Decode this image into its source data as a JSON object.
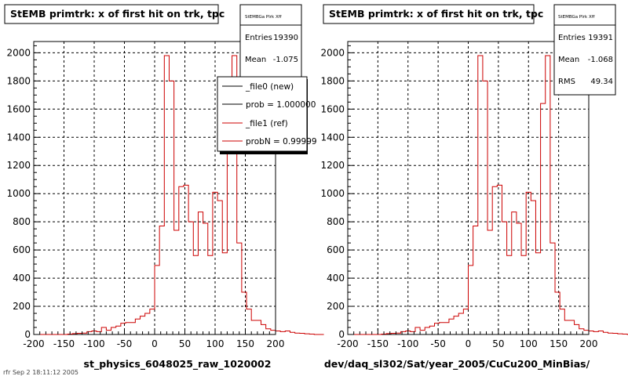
{
  "chart_data": [
    {
      "type": "histogram",
      "title": "StEMB primtrk: x of first hit on trk, tpc",
      "xlabel": "st_physics_6048025_raw_1020002",
      "xlim": [
        -200,
        200
      ],
      "ylim": [
        0,
        2080
      ],
      "xticks": [
        -200,
        -150,
        -100,
        -50,
        0,
        50,
        100,
        150,
        200
      ],
      "yticks": [
        0,
        200,
        400,
        600,
        800,
        1000,
        1200,
        1400,
        1600,
        1800,
        2000
      ],
      "grid": true,
      "bin_width": 8,
      "bin_edges_start": -200,
      "values": [
        0,
        0,
        0,
        0,
        0,
        0,
        0,
        3,
        6,
        8,
        10,
        20,
        25,
        20,
        50,
        30,
        50,
        60,
        80,
        85,
        85,
        110,
        130,
        150,
        180,
        490,
        770,
        1980,
        1800,
        740,
        1050,
        1060,
        800,
        560,
        870,
        790,
        560,
        1010,
        950,
        580,
        1640,
        1980,
        650,
        300,
        180,
        100,
        100,
        70,
        40,
        30,
        25,
        20,
        25,
        15,
        10,
        8,
        5,
        3,
        0,
        0
      ],
      "line_color": "#cc0000",
      "stats": {
        "header": "StEMBGa Plrk Xff",
        "entries_label": "Entries",
        "entries_value": "19390",
        "mean_label": "Mean",
        "mean_value": "-1.075"
      },
      "legend": [
        {
          "label": "_file0 (new)",
          "color": "#000000"
        },
        {
          "label": "prob = 1.000000",
          "color": "#000000"
        },
        {
          "label": "_file1 (ref)",
          "color": "#cc0000"
        },
        {
          "label": "probN = 0.99999",
          "color": "#cc0000"
        }
      ]
    },
    {
      "type": "histogram",
      "title": "StEMB primtrk: x of first hit on trk, tpc",
      "xlabel": "dev/daq_sl302/Sat/year_2005/CuCu200_MinBias/",
      "xlim": [
        -200,
        200
      ],
      "ylim": [
        0,
        2080
      ],
      "xticks": [
        -200,
        -150,
        -100,
        -50,
        0,
        50,
        100,
        150,
        200
      ],
      "yticks": [
        0,
        200,
        400,
        600,
        800,
        1000,
        1200,
        1400,
        1600,
        1800,
        2000
      ],
      "grid": true,
      "bin_width": 8,
      "bin_edges_start": -200,
      "values": [
        0,
        0,
        0,
        0,
        0,
        0,
        0,
        3,
        6,
        8,
        10,
        20,
        25,
        20,
        50,
        30,
        50,
        60,
        80,
        85,
        85,
        110,
        130,
        150,
        180,
        490,
        770,
        1980,
        1800,
        740,
        1050,
        1060,
        800,
        560,
        870,
        790,
        560,
        1010,
        950,
        580,
        1640,
        1980,
        650,
        300,
        180,
        100,
        100,
        70,
        40,
        30,
        25,
        20,
        25,
        15,
        10,
        8,
        5,
        3,
        0,
        0
      ],
      "line_color": "#cc0000",
      "stats": {
        "header": "StEMBGa Plrk Xff",
        "entries_label": "Entries",
        "entries_value": "19391",
        "mean_label": "Mean",
        "mean_value": "-1.068",
        "rms_label": "RMS",
        "rms_value": "49.34"
      }
    }
  ],
  "footer": "rfr Sep  2 18:11:12 2005"
}
